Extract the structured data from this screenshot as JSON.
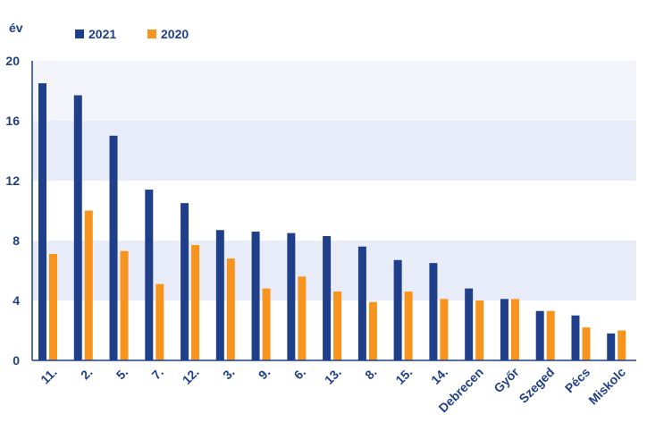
{
  "chart_data": {
    "type": "bar",
    "ylabel": "év",
    "ylim": [
      0,
      20
    ],
    "yticks": [
      0,
      4,
      8,
      12,
      16,
      20
    ],
    "grid": "alternating horizontal bands",
    "legend_position": "top-left",
    "categories": [
      "11.",
      "2.",
      "5.",
      "7.",
      "12.",
      "3.",
      "9.",
      "6.",
      "13.",
      "8.",
      "15.",
      "14.",
      "Debrecen",
      "Győr",
      "Szeged",
      "Pécs",
      "Miskolc"
    ],
    "series": [
      {
        "name": "2021",
        "color": "#1f3f8a",
        "values": [
          18.5,
          17.7,
          15.0,
          11.4,
          10.5,
          8.7,
          8.6,
          8.5,
          8.3,
          7.6,
          6.7,
          6.5,
          4.8,
          4.1,
          3.3,
          3.0,
          1.8
        ]
      },
      {
        "name": "2020",
        "color": "#f7941d",
        "values": [
          7.1,
          10.0,
          7.3,
          5.1,
          7.7,
          6.8,
          4.8,
          5.6,
          4.6,
          3.9,
          4.6,
          4.1,
          4.0,
          4.1,
          3.3,
          2.2,
          2.0
        ]
      }
    ]
  },
  "colors": {
    "band": "#e8ecf8",
    "axis": "#1f3f8a"
  }
}
